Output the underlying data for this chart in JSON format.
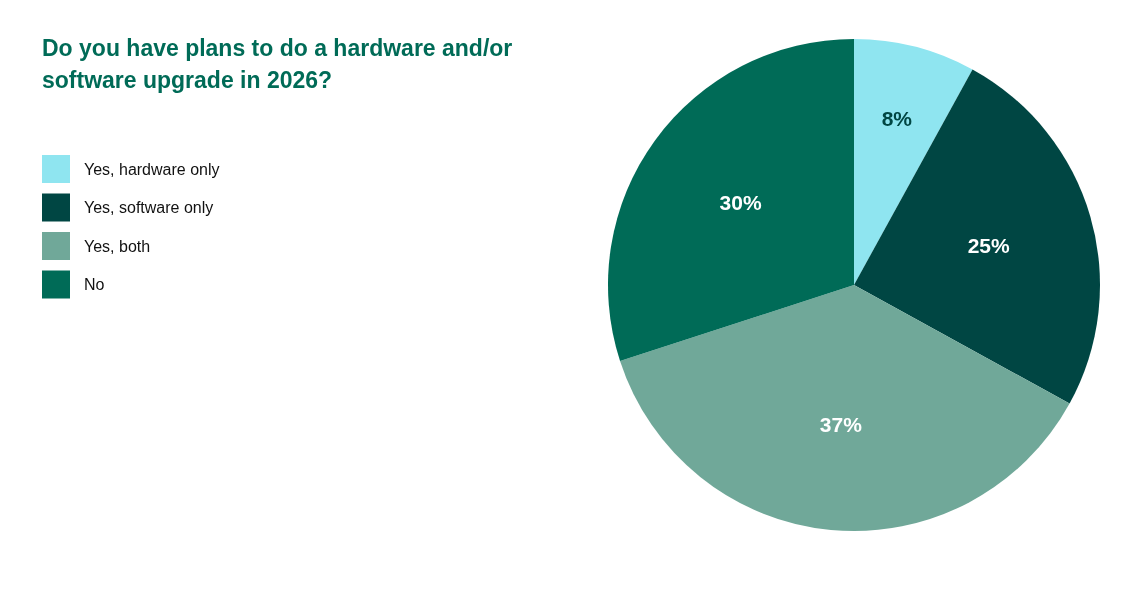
{
  "chart_data": {
    "type": "pie",
    "title": "Do you have plans to do a hardware and/or software upgrade in 2026?",
    "categories": [
      "Yes, hardware only",
      "Yes, software only",
      "Yes, both",
      "No"
    ],
    "values": [
      8,
      25,
      37,
      30
    ],
    "value_labels": [
      "8%",
      "25%",
      "37%",
      "30%"
    ],
    "colors": [
      "#8fe5f0",
      "#004643",
      "#70a899",
      "#006b57"
    ],
    "legend": "left"
  }
}
